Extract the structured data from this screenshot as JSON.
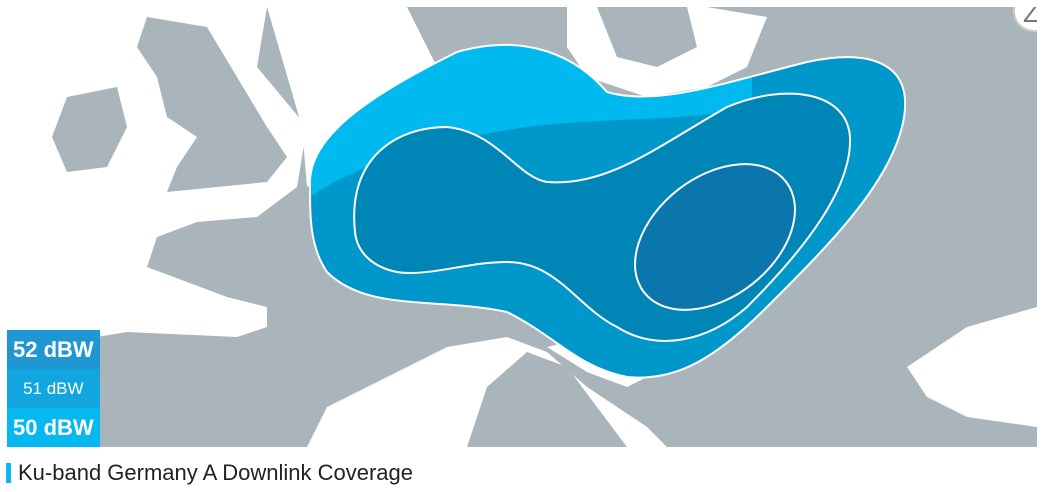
{
  "map": {
    "legend": [
      {
        "label": "52 dBW",
        "color": "#1f97d3"
      },
      {
        "label": "51 dBW",
        "color": "#11a6df"
      },
      {
        "label": "50 dBW",
        "color": "#05b9f0"
      }
    ],
    "zoom_button_label": "Z",
    "colors": {
      "land": "#a9b4bb",
      "sea": "#ffffff",
      "zone50_sea": "#00b9ef",
      "zone50_land": "#0098cb",
      "zone51": "#0085b7",
      "zone52": "#0b76ab"
    }
  },
  "caption": "Ku-band Germany A Downlink Coverage"
}
